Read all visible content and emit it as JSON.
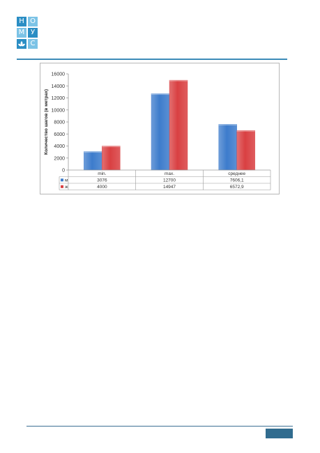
{
  "logo": {
    "cells": [
      {
        "text": "Н",
        "color": "#2b8ec4"
      },
      {
        "text": "О",
        "color": "#7cc3e6"
      },
      {
        "text": "М",
        "color": "#7cc3e6"
      },
      {
        "text": "У",
        "color": "#2b8ec4"
      },
      {
        "text": "",
        "icon": "lotus-icon",
        "color": "#2b8ec4"
      },
      {
        "text": "С",
        "color": "#7cc3e6"
      }
    ]
  },
  "colors": {
    "accent": "#3c8bb8",
    "series_m": "#3d7ccc",
    "series_w": "#d94042",
    "page_box": "#316c8f"
  },
  "chart_data": {
    "type": "bar",
    "categories": [
      "min.",
      "max.",
      "среднее"
    ],
    "series": [
      {
        "name": "м",
        "values": [
          3076,
          12700,
          7606.1
        ],
        "labels": [
          "3076",
          "12700",
          "7606,1"
        ],
        "color": "#3d7ccc"
      },
      {
        "name": "ж",
        "values": [
          4000,
          14947,
          6572.9
        ],
        "labels": [
          "4000",
          "14947",
          "6572,9"
        ],
        "color": "#d94042"
      }
    ],
    "title": "",
    "xlabel": "",
    "ylabel": "Количество шагов (в метрах)",
    "ylim": [
      0,
      16000
    ],
    "yticks": [
      0,
      2000,
      4000,
      6000,
      8000,
      10000,
      12000,
      14000,
      16000
    ],
    "grid": false,
    "legend": "data-table"
  }
}
